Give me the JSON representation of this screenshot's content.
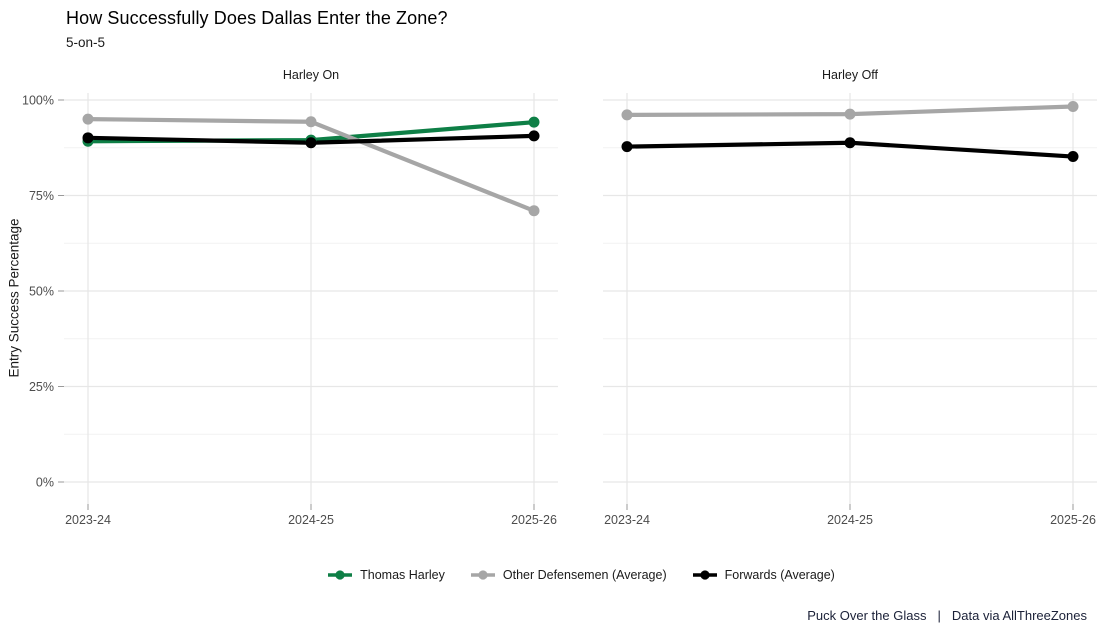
{
  "header": {
    "title": "How Successfully Does Dallas Enter the Zone?",
    "subtitle": "5-on-5"
  },
  "footer": {
    "left": "Puck Over the Glass",
    "separator": "|",
    "right": "Data via AllThreeZones"
  },
  "colors": {
    "harley_green": "#0e7f46",
    "defensemen_gray": "#a6a6a6",
    "forwards_black": "#000000",
    "gridline_major": "#e7e7e7",
    "gridline_minor": "#f2f2f2",
    "axis_text": "#4d4d4d",
    "tick_mark": "#9a9a9a"
  },
  "legend": {
    "position": "bottom",
    "entries": [
      {
        "label": "Thomas Harley",
        "color": "#0e7f46"
      },
      {
        "label": "Other Defensemen (Average)",
        "color": "#a6a6a6"
      },
      {
        "label": "Forwards (Average)",
        "color": "#000000"
      }
    ]
  },
  "chart_data": {
    "type": "line",
    "title": "How Successfully Does Dallas Enter the Zone?",
    "subtitle": "5-on-5",
    "xlabel": "",
    "ylabel": "Entry Success Percentage",
    "ylim": [
      0,
      100
    ],
    "y_major_ticks": [
      0,
      25,
      50,
      75,
      100
    ],
    "y_minor_ticks": [
      12.5,
      37.5,
      62.5,
      87.5
    ],
    "y_tick_labels": [
      "0%",
      "25%",
      "50%",
      "75%",
      "100%"
    ],
    "x_categories": [
      "2023-24",
      "2024-25",
      "2025-26"
    ],
    "grid": true,
    "legend_position": "bottom",
    "facets": [
      {
        "label": "Harley On",
        "series": [
          {
            "name": "Thomas Harley",
            "color": "#0e7f46",
            "values": [
              89.2,
              89.5,
              94.2
            ]
          },
          {
            "name": "Other Defensemen (Average)",
            "color": "#a6a6a6",
            "values": [
              95.0,
              94.3,
              71.0
            ]
          },
          {
            "name": "Forwards (Average)",
            "color": "#000000",
            "values": [
              90.1,
              88.8,
              90.6
            ]
          }
        ]
      },
      {
        "label": "Harley Off",
        "series": [
          {
            "name": "Other Defensemen (Average)",
            "color": "#a6a6a6",
            "values": [
              96.1,
              96.3,
              98.3
            ]
          },
          {
            "name": "Forwards (Average)",
            "color": "#000000",
            "values": [
              87.8,
              88.8,
              85.2
            ]
          }
        ]
      }
    ]
  }
}
